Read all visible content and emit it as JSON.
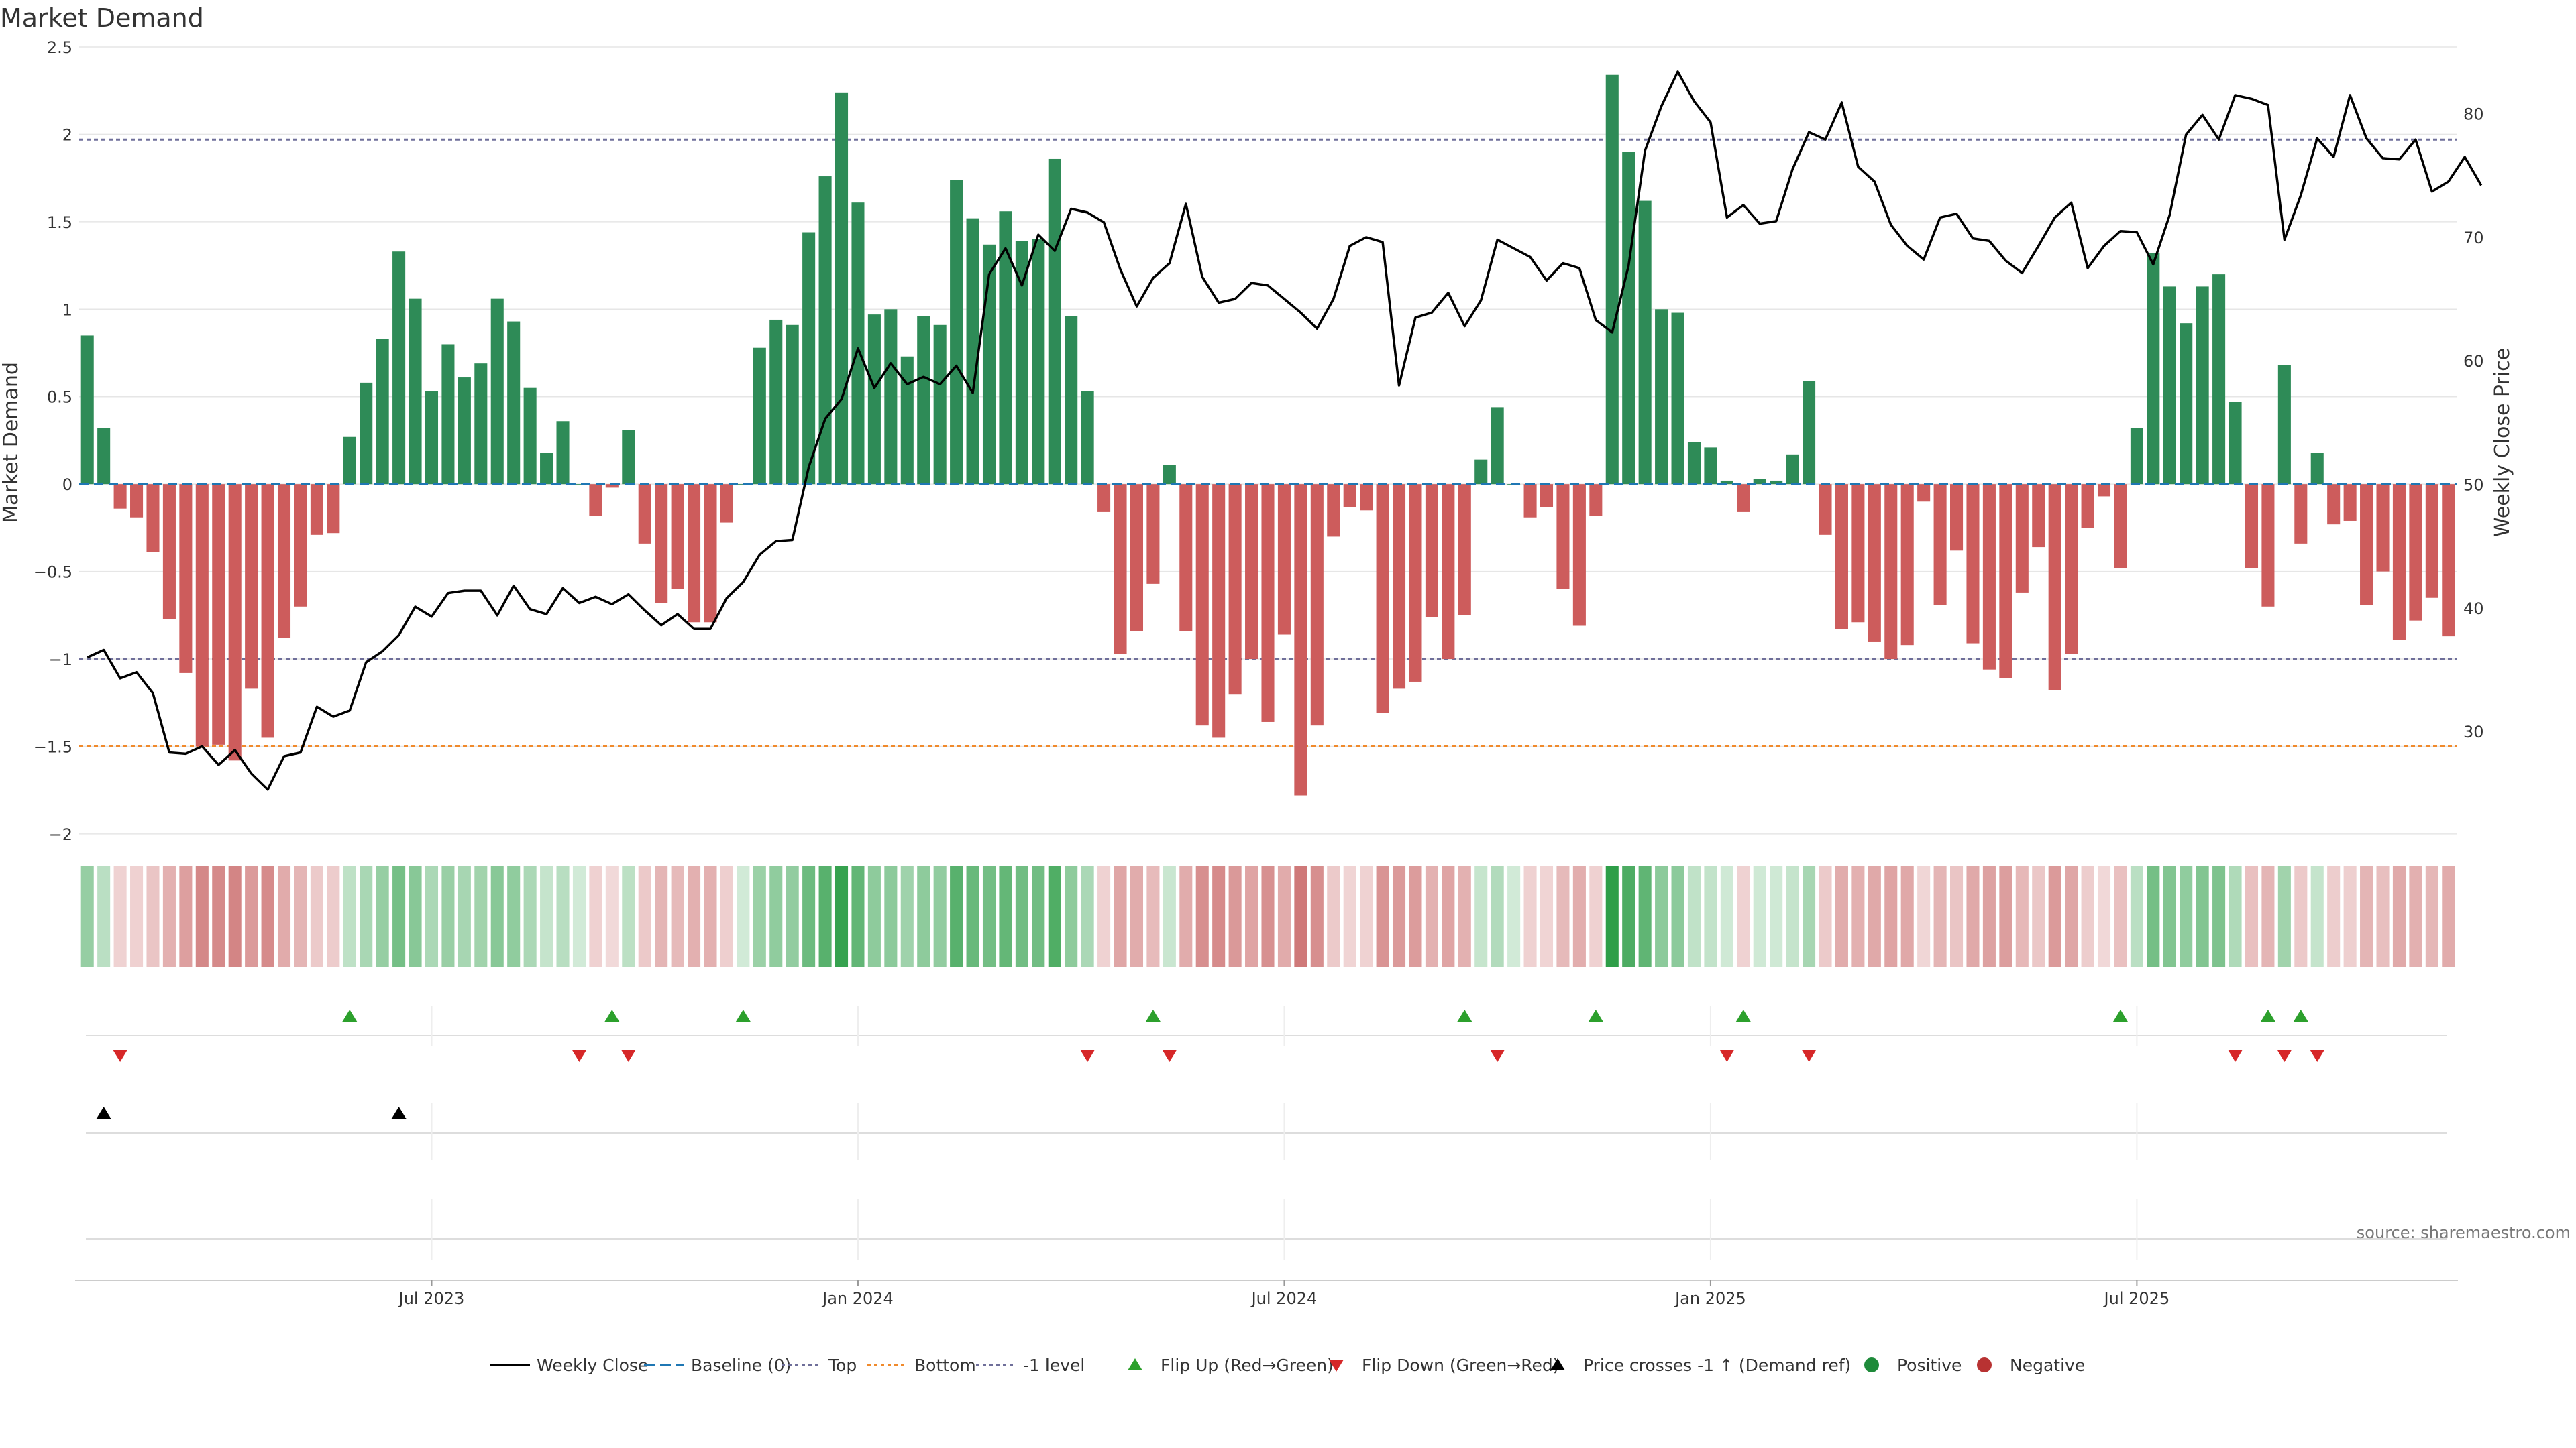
{
  "chart_data": {
    "type": "bar",
    "title": "Market Demand",
    "ylabel": "Market Demand",
    "y2label": "Weekly Close Price",
    "ylim": [
      -2.1,
      2.5
    ],
    "y2lim": [
      20.3,
      85.4
    ],
    "y_ticks": [
      {
        "v": 2.5,
        "label": "2.5"
      },
      {
        "v": 2,
        "label": "2"
      },
      {
        "v": 1.5,
        "label": "1.5"
      },
      {
        "v": 1,
        "label": "1"
      },
      {
        "v": 0.5,
        "label": "0.5"
      },
      {
        "v": 0,
        "label": "0"
      },
      {
        "v": -0.5,
        "label": "−0.5"
      },
      {
        "v": -1,
        "label": "−1"
      },
      {
        "v": -1.5,
        "label": "−1.5"
      },
      {
        "v": -2,
        "label": "−2"
      }
    ],
    "y2_ticks": [
      {
        "v": 80,
        "label": "80"
      },
      {
        "v": 70,
        "label": "70"
      },
      {
        "v": 60,
        "label": "60"
      },
      {
        "v": 50,
        "label": "50"
      },
      {
        "v": 40,
        "label": "40"
      },
      {
        "v": 30,
        "label": "30"
      }
    ],
    "x_ticks": [
      {
        "week": 21,
        "label": "Jul 2023"
      },
      {
        "week": 47,
        "label": "Jan 2024"
      },
      {
        "week": 73,
        "label": "Jul 2024"
      },
      {
        "week": 99,
        "label": "Jan 2025"
      },
      {
        "week": 125,
        "label": "Jul 2025"
      }
    ],
    "ref_lines": [
      {
        "name": "Top",
        "value": 1.97,
        "color": "#6f6f9a"
      },
      {
        "name": "-1 level",
        "value": -1,
        "color": "#6f6f9a"
      },
      {
        "name": "Bottom",
        "value": -1.5,
        "color": "#f08a2c"
      }
    ],
    "demand": [
      0.85,
      0.32,
      -0.14,
      -0.19,
      -0.39,
      -0.77,
      -1.08,
      -1.5,
      -1.49,
      -1.58,
      -1.17,
      -1.45,
      -0.88,
      -0.7,
      -0.29,
      -0.28,
      0.27,
      0.58,
      0.83,
      1.33,
      1.06,
      0.53,
      0.8,
      0.61,
      0.69,
      1.06,
      0.93,
      0.55,
      0.18,
      0.36,
      0,
      -0.18,
      -0.02,
      0.31,
      -0.34,
      -0.68,
      -0.6,
      -0.79,
      -0.79,
      -0.22,
      0,
      0.78,
      0.94,
      0.91,
      1.44,
      1.76,
      2.24,
      1.61,
      0.97,
      1.0,
      0.73,
      0.96,
      0.91,
      1.74,
      1.52,
      1.37,
      1.56,
      1.39,
      1.4,
      1.86,
      0.96,
      0.53,
      -0.16,
      -0.97,
      -0.84,
      -0.57,
      0.11,
      -0.84,
      -1.38,
      -1.45,
      -1.2,
      -1.0,
      -1.36,
      -0.86,
      -1.78,
      -1.38,
      -0.3,
      -0.13,
      -0.15,
      -1.31,
      -1.17,
      -1.13,
      -0.76,
      -1.0,
      -0.75,
      0.14,
      0.44,
      0,
      -0.19,
      -0.13,
      -0.6,
      -0.81,
      -0.18,
      2.34,
      1.9,
      1.62,
      1.0,
      0.98,
      0.24,
      0.21,
      0.02,
      -0.16,
      0.03,
      0.02,
      0.17,
      0.59,
      -0.29,
      -0.83,
      -0.79,
      -0.9,
      -1.0,
      -0.92,
      -0.1,
      -0.69,
      -0.38,
      -0.91,
      -1.06,
      -1.11,
      -0.62,
      -0.36,
      -1.18,
      -0.97,
      -0.25,
      -0.07,
      -0.48,
      0.32,
      1.32,
      1.13,
      0.92,
      1.13,
      1.2,
      0.47,
      -0.48,
      -0.7,
      0.68,
      -0.34,
      0.18,
      -0.23,
      -0.21,
      -0.69,
      -0.5,
      -0.89,
      -0.78,
      -0.65,
      -0.87
    ],
    "close": [
      36,
      36.6,
      34.3,
      34.8,
      33.1,
      28.3,
      28.2,
      28.8,
      27.3,
      28.5,
      26.6,
      25.3,
      28.0,
      28.3,
      32.0,
      31.2,
      31.7,
      35.6,
      36.5,
      37.8,
      40.1,
      39.3,
      41.2,
      41.4,
      41.4,
      39.4,
      41.8,
      39.9,
      39.5,
      41.6,
      40.4,
      40.9,
      40.3,
      41.1,
      39.8,
      38.6,
      39.5,
      38.3,
      38.3,
      40.8,
      42.1,
      44.3,
      45.4,
      45.5,
      51.4,
      55.3,
      56.9,
      61.0,
      57.8,
      59.8,
      58.1,
      58.7,
      58.1,
      59.6,
      57.4,
      67.0,
      69.1,
      66.1,
      70.2,
      68.9,
      72.3,
      72.0,
      71.2,
      67.4,
      64.4,
      66.7,
      67.9,
      72.7,
      66.8,
      64.7,
      65.0,
      66.3,
      66.1,
      65.0,
      63.9,
      62.6,
      65.0,
      69.3,
      70.0,
      69.6,
      58.0,
      63.5,
      63.9,
      65.5,
      62.8,
      64.9,
      69.8,
      69.1,
      68.4,
      66.5,
      67.9,
      67.5,
      63.3,
      62.3,
      67.7,
      77.0,
      80.6,
      83.4,
      81.0,
      79.3,
      71.6,
      72.6,
      71.1,
      71.3,
      75.5,
      78.5,
      77.9,
      80.9,
      75.7,
      74.5,
      71.0,
      69.3,
      68.2,
      71.6,
      71.9,
      69.9,
      69.7,
      68.1,
      67.1,
      69.3,
      71.6,
      72.8,
      67.5,
      69.3,
      70.5,
      70.4,
      67.8,
      71.8,
      78.3,
      79.9,
      77.9,
      81.5,
      81.2,
      80.7,
      69.8,
      73.4,
      78.0,
      76.5,
      81.5,
      78.0,
      76.4,
      76.3,
      77.9,
      73.7,
      74.5,
      76.5,
      74.2
    ],
    "flip_up_weeks": [
      16,
      32,
      40,
      65,
      84,
      92,
      101,
      124,
      133,
      135
    ],
    "flip_down_weeks": [
      2,
      30,
      33,
      61,
      66,
      86,
      100,
      105,
      131,
      134,
      136
    ],
    "price_cross_weeks": [
      1,
      19
    ],
    "colors": {
      "positive": "#2e8b57",
      "negative": "#cd5c5c",
      "line": "#000000",
      "baseline": "#1f77b4",
      "flip_up": "#2ca02c",
      "flip_down": "#d62728",
      "grid": "#e6e6e6"
    },
    "legend": [
      {
        "key": "close",
        "label": "Weekly Close"
      },
      {
        "key": "baseline",
        "label": "Baseline (0)"
      },
      {
        "key": "top",
        "label": "Top"
      },
      {
        "key": "bottom",
        "label": "Bottom"
      },
      {
        "key": "minus1",
        "label": "-1 level"
      },
      {
        "key": "flipup",
        "label": "Flip Up (Red→Green)"
      },
      {
        "key": "flipdown",
        "label": "Flip Down (Green→Red)"
      },
      {
        "key": "cross",
        "label": "Price crosses -1 ↑ (Demand ref)"
      },
      {
        "key": "pos",
        "label": "Positive"
      },
      {
        "key": "neg",
        "label": "Negative"
      }
    ],
    "source": "source: sharemaestro.com"
  }
}
